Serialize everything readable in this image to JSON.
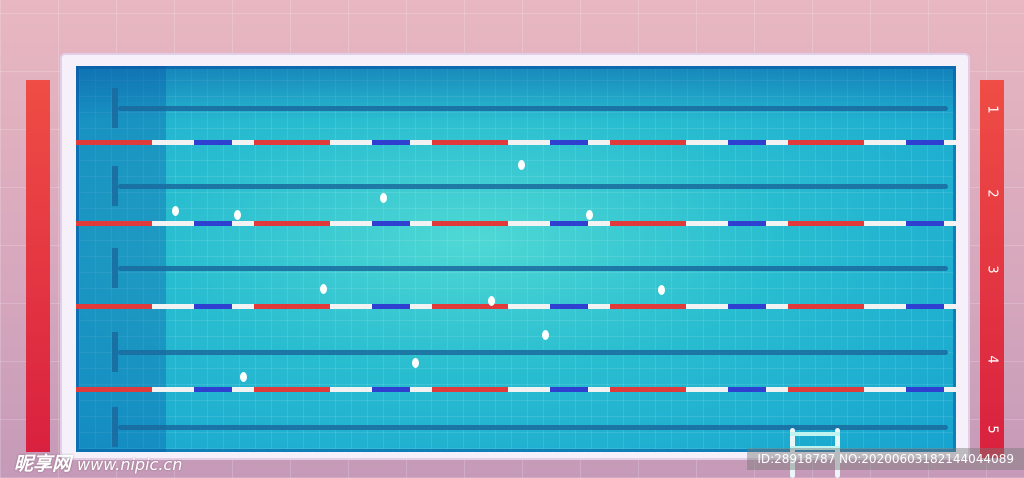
{
  "scene": {
    "lane_numbers": [
      "1",
      "2",
      "3",
      "4",
      "5"
    ],
    "colors": {
      "water": "#29bdd0",
      "rope_red": "#e03a3a",
      "rope_blue": "#2f3fd0",
      "marker": "#e0303f",
      "deck": "#d9a9b8"
    }
  },
  "watermark": {
    "logo_text": "昵享网",
    "site": "www.nipic.cn",
    "id_text": "ID:28918787 NO:20200603182144044089"
  }
}
